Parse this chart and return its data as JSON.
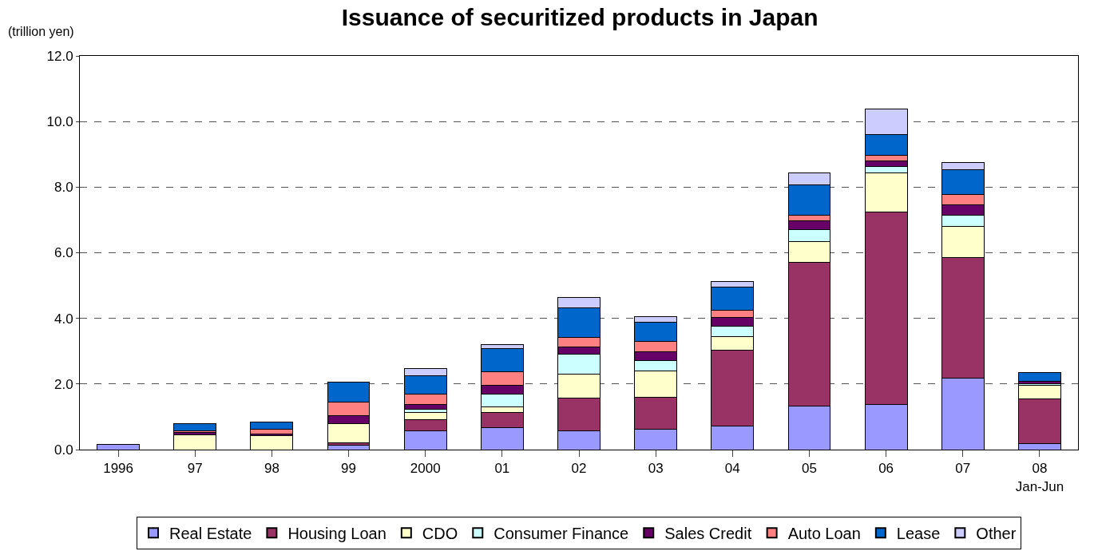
{
  "chart_data": {
    "type": "bar",
    "stacked": true,
    "title": "Issuance of securitized products in Japan",
    "ylabel": "(trillion yen)",
    "categories": [
      "1996",
      "97",
      "98",
      "99",
      "2000",
      "01",
      "02",
      "03",
      "04",
      "05",
      "06",
      "07",
      "08\nJan-Jun"
    ],
    "series": [
      {
        "name": "Real Estate",
        "color": "#9999ff",
        "values": [
          0.15,
          null,
          null,
          0.13,
          0.56,
          0.67,
          0.56,
          0.63,
          0.73,
          1.32,
          1.38,
          2.17,
          0.19
        ]
      },
      {
        "name": "Housing Loan",
        "color": "#993366",
        "values": [
          null,
          null,
          null,
          0.07,
          0.36,
          0.47,
          1.02,
          0.96,
          2.29,
          4.39,
          5.87,
          3.69,
          1.35
        ]
      },
      {
        "name": "CDO",
        "color": "#ffffcc",
        "values": [
          null,
          0.44,
          0.42,
          0.58,
          0.22,
          0.17,
          0.71,
          0.8,
          0.43,
          0.62,
          1.18,
          0.95,
          0.41
        ]
      },
      {
        "name": "Consumer Finance",
        "color": "#ccffff",
        "values": [
          null,
          null,
          null,
          null,
          0.08,
          0.37,
          0.63,
          0.32,
          0.31,
          0.37,
          0.2,
          0.33,
          0.06
        ]
      },
      {
        "name": "Sales Credit",
        "color": "#660066",
        "values": [
          null,
          0.08,
          0.06,
          0.26,
          0.16,
          0.27,
          0.22,
          0.26,
          0.27,
          0.27,
          0.17,
          0.31,
          0.07
        ]
      },
      {
        "name": "Auto Loan",
        "color": "#ff8080",
        "values": [
          null,
          0.06,
          0.15,
          0.41,
          0.31,
          0.43,
          0.27,
          0.33,
          0.21,
          0.17,
          0.16,
          0.33,
          null
        ]
      },
      {
        "name": "Lease",
        "color": "#0066cc",
        "values": [
          null,
          0.22,
          0.22,
          0.61,
          0.55,
          0.7,
          0.9,
          0.58,
          0.71,
          0.92,
          0.64,
          0.75,
          0.27
        ]
      },
      {
        "name": "Other",
        "color": "#ccccff",
        "values": [
          null,
          null,
          null,
          null,
          0.22,
          0.12,
          0.33,
          0.18,
          0.18,
          0.37,
          0.77,
          0.21,
          null
        ]
      }
    ],
    "ylim": [
      0,
      12
    ],
    "yticks": [
      {
        "value": 0,
        "label": "0.0"
      },
      {
        "value": 2,
        "label": "2.0"
      },
      {
        "value": 4,
        "label": "4.0"
      },
      {
        "value": 6,
        "label": "6.0"
      },
      {
        "value": 8,
        "label": "8.0"
      },
      {
        "value": 10,
        "label": "10.0"
      },
      {
        "value": 12,
        "label": "12.0"
      }
    ],
    "grid": "y",
    "legend": "bottom"
  }
}
